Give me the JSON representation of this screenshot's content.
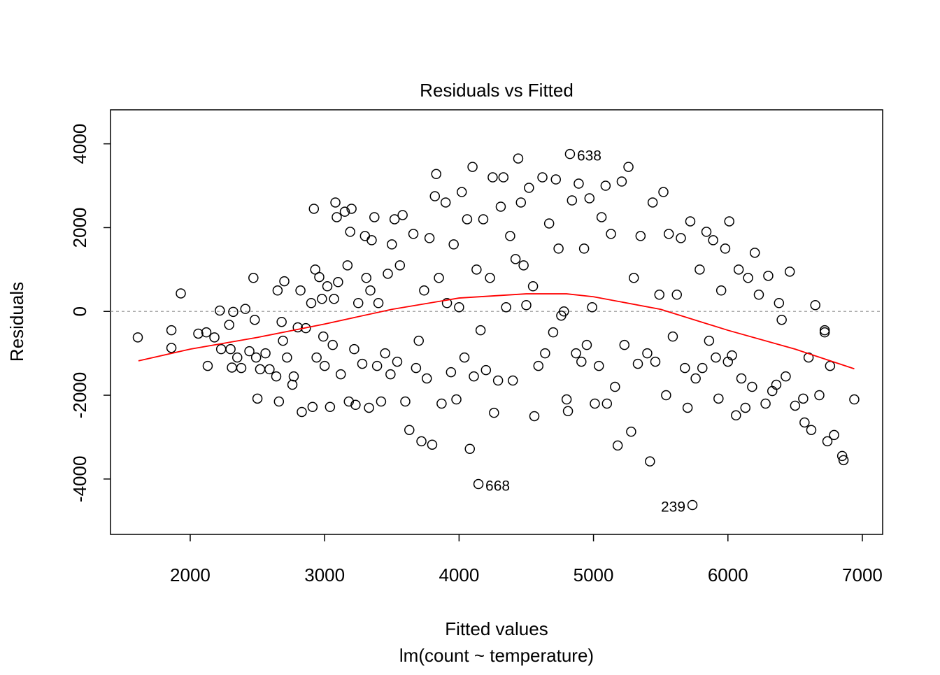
{
  "chart_data": {
    "type": "scatter",
    "title": "Residuals vs Fitted",
    "xlabel": "Fitted values",
    "subtitle": "lm(count ~ temperature)",
    "ylabel": "Residuals",
    "xlim": [
      1407,
      7151
    ],
    "ylim": [
      -5322,
      4812
    ],
    "xticks": [
      2000,
      3000,
      4000,
      5000,
      6000,
      7000
    ],
    "yticks": [
      -4000,
      -2000,
      0,
      2000,
      4000
    ],
    "color": "#000000",
    "reference_line": 0,
    "x": [
      1610,
      1860,
      1860,
      1930,
      2060,
      2120,
      2130,
      2180,
      2220,
      2230,
      2290,
      2300,
      2310,
      2320,
      2350,
      2380,
      2410,
      2440,
      2470,
      2480,
      2490,
      2500,
      2520,
      2560,
      2590,
      2640,
      2650,
      2660,
      2680,
      2690,
      2700,
      2720,
      2760,
      2770,
      2800,
      2820,
      2830,
      2860,
      2900,
      2910,
      2920,
      2930,
      2940,
      2960,
      2980,
      2990,
      3000,
      3020,
      3040,
      3060,
      3070,
      3080,
      3090,
      3100,
      3120,
      3150,
      3170,
      3180,
      3190,
      3200,
      3220,
      3230,
      3250,
      3280,
      3300,
      3310,
      3330,
      3340,
      3350,
      3370,
      3390,
      3400,
      3420,
      3450,
      3470,
      3490,
      3500,
      3520,
      3540,
      3560,
      3580,
      3600,
      3630,
      3660,
      3680,
      3700,
      3720,
      3740,
      3760,
      3780,
      3800,
      3820,
      3830,
      3850,
      3870,
      3900,
      3910,
      3940,
      3960,
      3980,
      4000,
      4020,
      4040,
      4060,
      4080,
      4100,
      4110,
      4130,
      4144,
      4160,
      4180,
      4200,
      4230,
      4250,
      4260,
      4290,
      4310,
      4330,
      4350,
      4380,
      4400,
      4420,
      4440,
      4460,
      4480,
      4500,
      4520,
      4550,
      4560,
      4590,
      4620,
      4640,
      4670,
      4700,
      4720,
      4740,
      4760,
      4780,
      4800,
      4810,
      4825,
      4840,
      4870,
      4890,
      4910,
      4930,
      4950,
      4970,
      4990,
      5010,
      5040,
      5060,
      5090,
      5100,
      5130,
      5160,
      5180,
      5210,
      5230,
      5260,
      5280,
      5300,
      5330,
      5350,
      5400,
      5420,
      5440,
      5460,
      5490,
      5520,
      5540,
      5560,
      5590,
      5620,
      5650,
      5680,
      5700,
      5720,
      5736,
      5760,
      5790,
      5810,
      5840,
      5860,
      5890,
      5910,
      5930,
      5950,
      5980,
      6000,
      6010,
      6030,
      6060,
      6080,
      6100,
      6130,
      6150,
      6180,
      6200,
      6230,
      6280,
      6300,
      6330,
      6360,
      6380,
      6400,
      6430,
      6460,
      6500,
      6560,
      6570,
      6600,
      6620,
      6650,
      6680,
      6720,
      6720,
      6740,
      6760,
      6790,
      6850,
      6860,
      6940
    ],
    "values": [
      -620,
      -450,
      -870,
      430,
      -530,
      -500,
      -1300,
      -620,
      20,
      -900,
      -320,
      -900,
      -1340,
      -10,
      -1100,
      -1350,
      60,
      -950,
      800,
      -200,
      -1100,
      -2080,
      -1380,
      -1000,
      -1380,
      -1550,
      500,
      -2150,
      -250,
      -700,
      720,
      -1100,
      -1750,
      -1550,
      -380,
      500,
      -2400,
      -400,
      200,
      -2280,
      2450,
      1000,
      -1100,
      820,
      300,
      -600,
      -1300,
      600,
      -2280,
      -800,
      300,
      2600,
      2250,
      700,
      -1500,
      2380,
      1100,
      -2150,
      1900,
      2450,
      -900,
      -2230,
      200,
      -1250,
      1800,
      800,
      -2300,
      500,
      1700,
      2250,
      -1300,
      200,
      -2150,
      -1000,
      900,
      -1500,
      1600,
      2200,
      -1200,
      1100,
      2300,
      -2150,
      -2830,
      1850,
      -1350,
      -700,
      -3100,
      500,
      -1600,
      1750,
      -3180,
      2750,
      3280,
      800,
      -2200,
      2600,
      200,
      -1450,
      1600,
      -2100,
      100,
      2850,
      -1100,
      2200,
      -3280,
      3450,
      -1550,
      1000,
      -4120,
      -450,
      2200,
      -1400,
      800,
      3200,
      -2420,
      -1650,
      2500,
      3200,
      100,
      1800,
      -1650,
      1250,
      3650,
      2600,
      1100,
      150,
      2950,
      600,
      -2500,
      -1300,
      3200,
      -1000,
      2100,
      -500,
      3150,
      1500,
      -100,
      0,
      -2100,
      -2380,
      3758,
      2650,
      -1000,
      3050,
      -1200,
      1500,
      -800,
      2700,
      100,
      -2200,
      -1300,
      2250,
      3000,
      -2200,
      1850,
      -1800,
      -3200,
      3100,
      -800,
      3450,
      -2870,
      800,
      -1250,
      1800,
      -1000,
      -3580,
      2600,
      -1200,
      400,
      2850,
      -2000,
      1850,
      -600,
      400,
      1750,
      -1350,
      -2300,
      2150,
      -4621,
      -1600,
      1000,
      -1350,
      1900,
      -700,
      1700,
      -1100,
      -2080,
      500,
      1500,
      -1200,
      2150,
      -1050,
      -2480,
      1000,
      -1600,
      -2300,
      800,
      -1800,
      1400,
      400,
      -2200,
      850,
      -1900,
      -1750,
      200,
      -200,
      -1550,
      950,
      -2250,
      -2080,
      -2650,
      -1100,
      -2830,
      150,
      -2000,
      -450,
      -500,
      -3100,
      -1300,
      -2950,
      -3450,
      -3550,
      -2100
    ],
    "smooth": {
      "color": "#ff0000",
      "x": [
        1615,
        2000,
        2500,
        3000,
        3500,
        4000,
        4500,
        4800,
        5000,
        5500,
        6000,
        6500,
        6940
      ],
      "y": [
        -1180,
        -900,
        -620,
        -300,
        50,
        320,
        420,
        420,
        350,
        50,
        -450,
        -900,
        -1370
      ]
    },
    "annotations": [
      {
        "text": "638",
        "x": 4825,
        "y": 3758,
        "position": "right"
      },
      {
        "text": "668",
        "x": 4144,
        "y": -4120,
        "position": "right"
      },
      {
        "text": "239",
        "x": 5736,
        "y": -4621,
        "position": "left"
      }
    ]
  }
}
